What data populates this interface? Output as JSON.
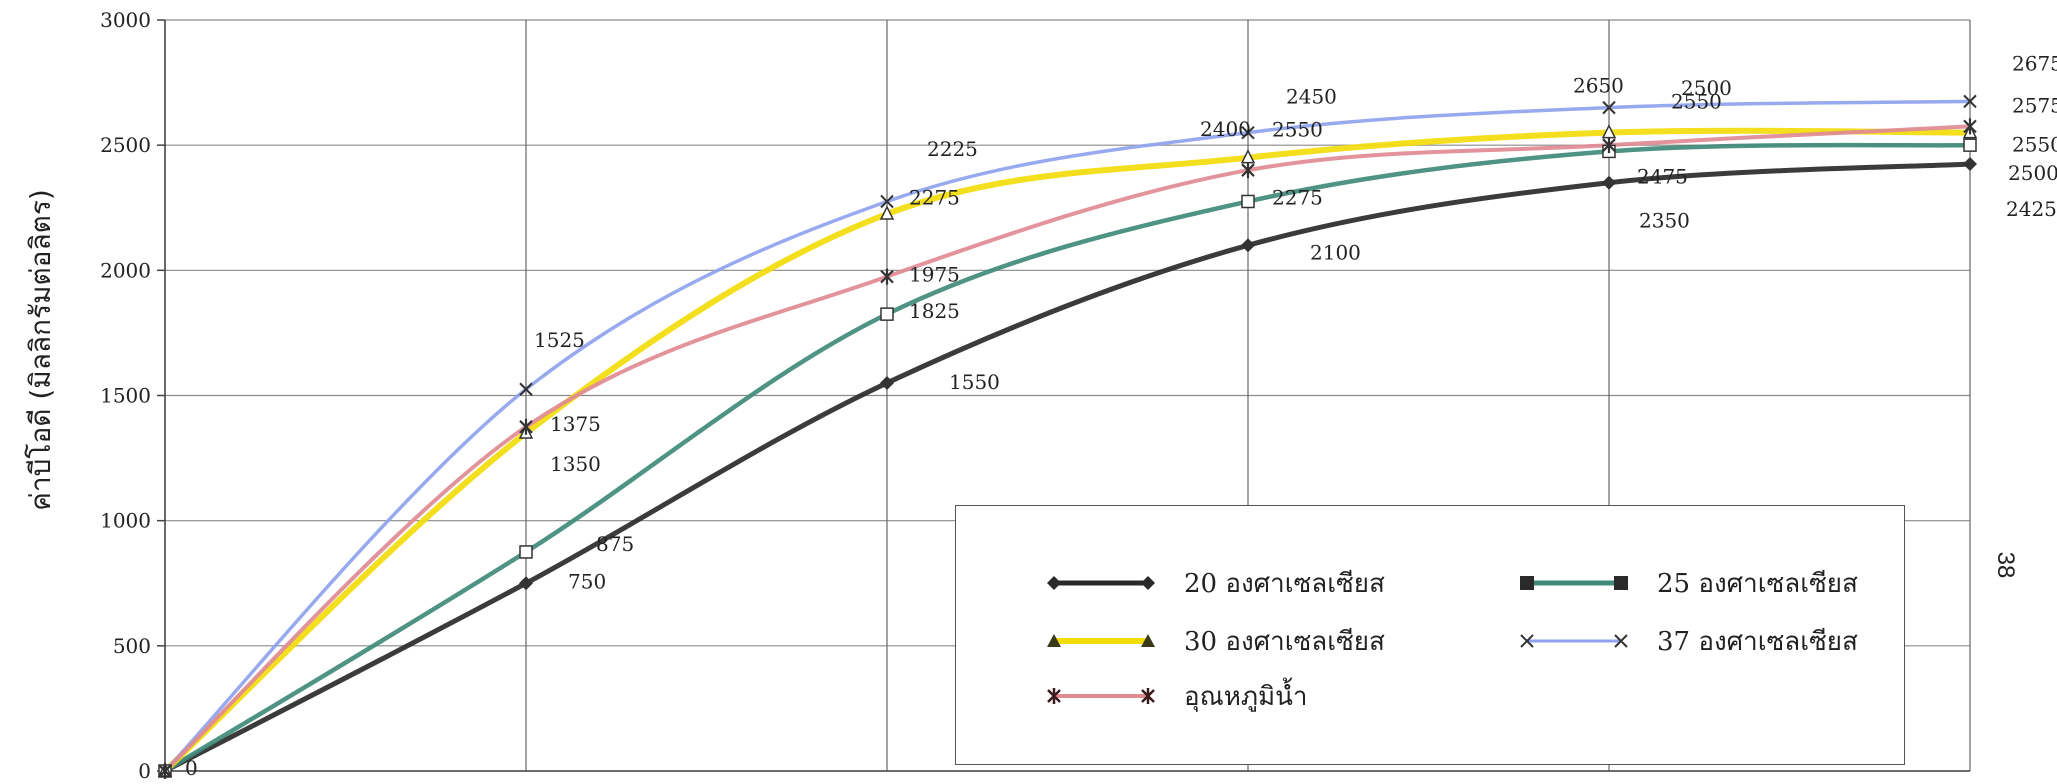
{
  "chart_data": {
    "type": "line",
    "title": "",
    "ylabel": "ค่าบีโอดี (มิลลิกรัมต่อลิตร)",
    "xlabel": "",
    "ylim": [
      0,
      3000
    ],
    "yticks": [
      0,
      500,
      1000,
      1500,
      2000,
      2500,
      3000
    ],
    "x": [
      0,
      1,
      2,
      3,
      4,
      5
    ],
    "grid": true,
    "legend_position": "bottom-right",
    "series": [
      {
        "name": "20 องศาเซลเซียส",
        "color": "#2a2a2a",
        "marker": "diamond",
        "values": [
          0,
          750,
          1550,
          2100,
          2350,
          2425
        ]
      },
      {
        "name": "25 องศาเซลเซียส",
        "color": "#3f8a78",
        "marker": "square",
        "values": [
          0,
          875,
          1825,
          2275,
          2475,
          2500
        ]
      },
      {
        "name": "30 องศาเซลเซียส",
        "color": "#f2dc0a",
        "marker": "triangle",
        "values": [
          0,
          1350,
          2225,
          2450,
          2550,
          2550
        ]
      },
      {
        "name": "37 องศาเซลเซียส",
        "color": "#8fa3ee",
        "marker": "x",
        "values": [
          0,
          1525,
          2275,
          2550,
          2650,
          2675
        ]
      },
      {
        "name": "อุณหภูมิน้ำ",
        "color": "#e08a92",
        "marker": "star",
        "values": [
          0,
          1375,
          1975,
          2400,
          2500,
          2575
        ]
      }
    ],
    "data_labels": [
      {
        "text": "0",
        "x": 0,
        "y": 0,
        "dx": 20,
        "dy": 4
      },
      {
        "text": "1525",
        "x": 1,
        "y": 1525,
        "dx": 8,
        "dy": -42
      },
      {
        "text": "1375",
        "x": 1,
        "y": 1375,
        "dx": 24,
        "dy": 4
      },
      {
        "text": "1350",
        "x": 1,
        "y": 1350,
        "dx": 24,
        "dy": 38
      },
      {
        "text": "875",
        "x": 1,
        "y": 875,
        "dx": 70,
        "dy": -1
      },
      {
        "text": "750",
        "x": 1,
        "y": 750,
        "dx": 42,
        "dy": 5
      },
      {
        "text": "2225",
        "x": 2,
        "y": 2225,
        "dx": 40,
        "dy": -58
      },
      {
        "text": "2275",
        "x": 2,
        "y": 2275,
        "dx": 22,
        "dy": 3
      },
      {
        "text": "1975",
        "x": 2,
        "y": 1975,
        "dx": 22,
        "dy": 5
      },
      {
        "text": "1825",
        "x": 2,
        "y": 1825,
        "dx": 22,
        "dy": 4
      },
      {
        "text": "1550",
        "x": 2,
        "y": 1550,
        "dx": 62,
        "dy": 6
      },
      {
        "text": "2400",
        "x": 3,
        "y": 2400,
        "dx": -48,
        "dy": -34
      },
      {
        "text": "2450",
        "x": 3,
        "y": 2450,
        "dx": 38,
        "dy": -54
      },
      {
        "text": "2550",
        "x": 3,
        "y": 2550,
        "dx": 24,
        "dy": 4
      },
      {
        "text": "2275",
        "x": 3,
        "y": 2275,
        "dx": 24,
        "dy": 3
      },
      {
        "text": "2100",
        "x": 3,
        "y": 2100,
        "dx": 62,
        "dy": 14
      },
      {
        "text": "2650",
        "x": 4,
        "y": 2650,
        "dx": -36,
        "dy": -15
      },
      {
        "text": "2500",
        "x": 4,
        "y": 2500,
        "dx": 72,
        "dy": -50
      },
      {
        "text": "2550",
        "x": 4,
        "y": 2550,
        "dx": 62,
        "dy": -24
      },
      {
        "text": "2475",
        "x": 4,
        "y": 2475,
        "dx": 28,
        "dy": 32
      },
      {
        "text": "2350",
        "x": 4,
        "y": 2350,
        "dx": 30,
        "dy": 45
      },
      {
        "text": "2675",
        "x": 5,
        "y": 2675,
        "dx": 42,
        "dy": -31
      },
      {
        "text": "2575",
        "x": 5,
        "y": 2575,
        "dx": 42,
        "dy": -14
      },
      {
        "text": "2550",
        "x": 5,
        "y": 2550,
        "dx": 42,
        "dy": 19
      },
      {
        "text": "2500",
        "x": 5,
        "y": 2500,
        "dx": 38,
        "dy": 35
      },
      {
        "text": "2425",
        "x": 5,
        "y": 2425,
        "dx": 36,
        "dy": 52
      }
    ]
  },
  "page_number": "38"
}
